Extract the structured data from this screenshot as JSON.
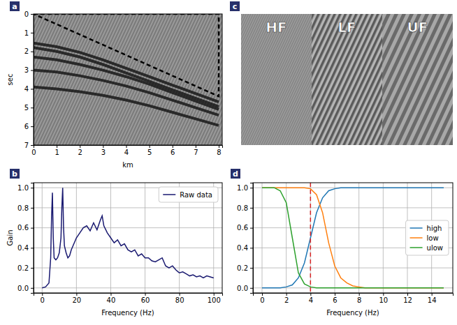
{
  "chart_data": [
    {
      "type": "seismic",
      "panel_label": "a",
      "x_label": "km",
      "y_label": "sec",
      "xlim": [
        0,
        8.15
      ],
      "xticks": [
        0,
        1,
        2,
        3,
        4,
        5,
        6,
        7,
        8
      ],
      "ylim": [
        0,
        7
      ],
      "yticks": [
        0,
        1,
        2,
        3,
        4,
        5,
        6,
        7
      ],
      "series": [
        {
          "color": "#111111",
          "x": [
            0,
            1,
            2,
            3,
            4,
            5,
            6,
            7,
            8
          ],
          "values": [
            1.55,
            1.75,
            2.05,
            2.45,
            2.9,
            3.35,
            3.8,
            4.25,
            4.7
          ]
        },
        {
          "color": "#111111",
          "x": [
            0,
            1,
            2,
            3,
            4,
            5,
            6,
            7,
            8
          ],
          "values": [
            1.8,
            2.0,
            2.3,
            2.7,
            3.15,
            3.6,
            4.05,
            4.5,
            4.95
          ]
        },
        {
          "color": "#111111",
          "x": [
            0,
            1,
            2,
            3,
            4,
            5,
            6,
            7,
            8
          ],
          "values": [
            2.3,
            2.45,
            2.7,
            3.0,
            3.35,
            3.75,
            4.2,
            4.65,
            5.1
          ]
        },
        {
          "color": "#111111",
          "x": [
            0,
            1,
            2,
            3,
            4,
            5,
            6,
            7,
            8
          ],
          "values": [
            3.0,
            3.1,
            3.3,
            3.55,
            3.85,
            4.2,
            4.6,
            5.0,
            5.4
          ]
        },
        {
          "color": "#111111",
          "x": [
            0,
            1,
            2,
            3,
            4,
            5,
            6,
            7,
            8
          ],
          "values": [
            3.9,
            4.0,
            4.15,
            4.35,
            4.6,
            4.9,
            5.25,
            5.6,
            5.95
          ]
        },
        {
          "color": "#000000",
          "line_style": "dashed",
          "x": [
            0,
            8,
            8,
            0
          ],
          "values": [
            0,
            0,
            4.4,
            0
          ]
        }
      ]
    },
    {
      "type": "seismic_panels",
      "panel_label": "c",
      "panels": [
        "HF",
        "LF",
        "UF"
      ]
    },
    {
      "type": "line",
      "panel_label": "b",
      "x_label": "Frequency (Hz)",
      "y_label": "Gain",
      "x": [
        0,
        2,
        4,
        5,
        5.5,
        6,
        6.5,
        7,
        8,
        9,
        10,
        11,
        11.5,
        12,
        12.5,
        13,
        14,
        15,
        16,
        17,
        18,
        20,
        22,
        24,
        26,
        28,
        30,
        32,
        34,
        35,
        36,
        38,
        40,
        42,
        44,
        46,
        48,
        50,
        52,
        54,
        56,
        58,
        60,
        62,
        64,
        66,
        68,
        70,
        72,
        74,
        76,
        78,
        80,
        82,
        84,
        86,
        88,
        90,
        92,
        94,
        96,
        98,
        100
      ],
      "series": [
        {
          "name": "Raw data",
          "color": "#191970",
          "values": [
            0,
            0.01,
            0.05,
            0.3,
            0.7,
            0.95,
            0.5,
            0.3,
            0.28,
            0.3,
            0.35,
            0.5,
            0.8,
            1.0,
            0.6,
            0.42,
            0.35,
            0.3,
            0.32,
            0.38,
            0.42,
            0.5,
            0.55,
            0.6,
            0.62,
            0.57,
            0.65,
            0.58,
            0.68,
            0.72,
            0.62,
            0.55,
            0.5,
            0.45,
            0.48,
            0.42,
            0.44,
            0.38,
            0.36,
            0.38,
            0.32,
            0.34,
            0.3,
            0.3,
            0.27,
            0.26,
            0.28,
            0.3,
            0.22,
            0.2,
            0.22,
            0.18,
            0.15,
            0.16,
            0.14,
            0.12,
            0.13,
            0.11,
            0.12,
            0.1,
            0.12,
            0.11,
            0.1
          ]
        }
      ],
      "xlim": [
        -5,
        105
      ],
      "xticks": [
        0,
        20,
        40,
        60,
        80,
        100
      ],
      "ylim": [
        -0.05,
        1.05
      ],
      "yticks": [
        {
          "value": 0,
          "label": "0.0"
        },
        0.2,
        0.4,
        0.6,
        0.8,
        {
          "value": 1,
          "label": "1.0"
        }
      ],
      "grid": true,
      "legend": "upper right"
    },
    {
      "type": "line",
      "panel_label": "d",
      "x_label": "Frequency (Hz)",
      "x": [
        0,
        0.5,
        1,
        1.5,
        2,
        2.5,
        3,
        3.5,
        4,
        4.5,
        5,
        5.5,
        6,
        6.5,
        7,
        7.5,
        8,
        8.5,
        9,
        9.5,
        10,
        10.5,
        11,
        11.5,
        12,
        12.5,
        13,
        13.5,
        14,
        14.5,
        15
      ],
      "series": [
        {
          "name": "high",
          "color": "#1f77b4",
          "values": [
            0,
            0,
            0,
            0,
            0.01,
            0.03,
            0.1,
            0.25,
            0.5,
            0.75,
            0.9,
            0.97,
            0.99,
            1,
            1,
            1,
            1,
            1,
            1,
            1,
            1,
            1,
            1,
            1,
            1,
            1,
            1,
            1,
            1,
            1,
            1
          ]
        },
        {
          "name": "low",
          "color": "#ff7f0e",
          "values": [
            1,
            1,
            1,
            1,
            1,
            1,
            1,
            1,
            0.99,
            0.93,
            0.75,
            0.45,
            0.22,
            0.1,
            0.05,
            0.02,
            0.01,
            0,
            0,
            0,
            0,
            0,
            0,
            0,
            0,
            0,
            0,
            0,
            0,
            0,
            0
          ]
        },
        {
          "name": "ulow",
          "color": "#2ca02c",
          "values": [
            1,
            1,
            1,
            0.97,
            0.85,
            0.5,
            0.15,
            0.04,
            0.01,
            0,
            0,
            0,
            0,
            0,
            0,
            0,
            0,
            0,
            0,
            0,
            0,
            0,
            0,
            0,
            0,
            0,
            0,
            0,
            0,
            0,
            0
          ]
        }
      ],
      "vline": {
        "x": 4,
        "color": "#d62728",
        "line_style": "dashed"
      },
      "xlim": [
        -0.75,
        15.75
      ],
      "xticks": [
        0,
        2,
        4,
        6,
        8,
        10,
        12,
        14
      ],
      "ylim": [
        -0.05,
        1.05
      ],
      "yticks": [
        {
          "value": 0,
          "label": "0.0"
        },
        0.2,
        0.4,
        0.6,
        0.8,
        {
          "value": 1,
          "label": "1.0"
        }
      ],
      "grid": true,
      "legend": "center right"
    }
  ]
}
